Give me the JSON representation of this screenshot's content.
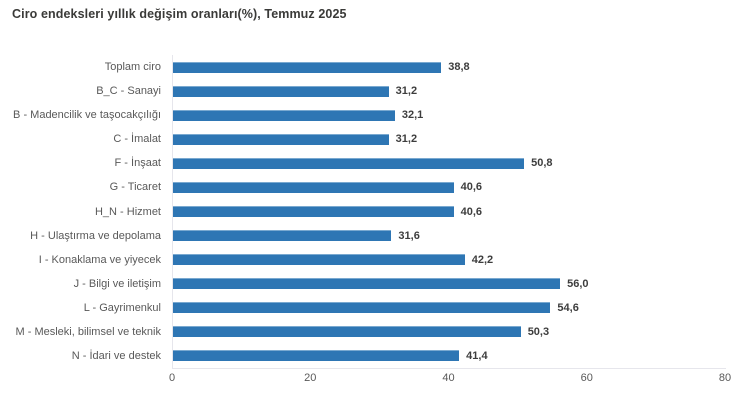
{
  "title": "Ciro endeksleri yıllık değişim oranları(%), Temmuz 2025",
  "colors": {
    "background": "#ffffff",
    "bar": "#2e76b4",
    "bar_top_edge": "#7aa9d0",
    "title_text": "#3a3a38",
    "category_text": "#595959",
    "value_text": "#3d3d3d",
    "tick_text": "#595959",
    "axis_line": "#e6e6ec"
  },
  "chart_data": {
    "type": "bar",
    "orientation": "horizontal",
    "title": "Ciro endeksleri yıllık değişim oranları(%), Temmuz 2025",
    "categories": [
      "Toplam ciro",
      "B_C - Sanayi",
      "B - Madencilik ve taşocakçılığı",
      "C - İmalat",
      "F - İnşaat",
      "G - Ticaret",
      "H_N - Hizmet",
      "H - Ulaştırma ve depolama",
      "I - Konaklama ve yiyecek",
      "J - Bilgi ve iletişim",
      "L - Gayrimenkul",
      "M - Mesleki, bilimsel ve teknik",
      "N - İdari ve destek"
    ],
    "values": [
      38.8,
      31.2,
      32.1,
      31.2,
      50.8,
      40.6,
      40.6,
      31.6,
      42.2,
      56.0,
      54.6,
      50.3,
      41.4
    ],
    "value_labels": [
      "38,8",
      "31,2",
      "32,1",
      "31,2",
      "50,8",
      "40,6",
      "40,6",
      "31,6",
      "42,2",
      "56,0",
      "54,6",
      "50,3",
      "41,4"
    ],
    "xlabel": "",
    "ylabel": "",
    "xlim": [
      0,
      80
    ],
    "x_ticks": [
      "0",
      "20",
      "40",
      "60",
      "80"
    ],
    "grid": false,
    "legend": "none",
    "value_labels_shown": true
  }
}
